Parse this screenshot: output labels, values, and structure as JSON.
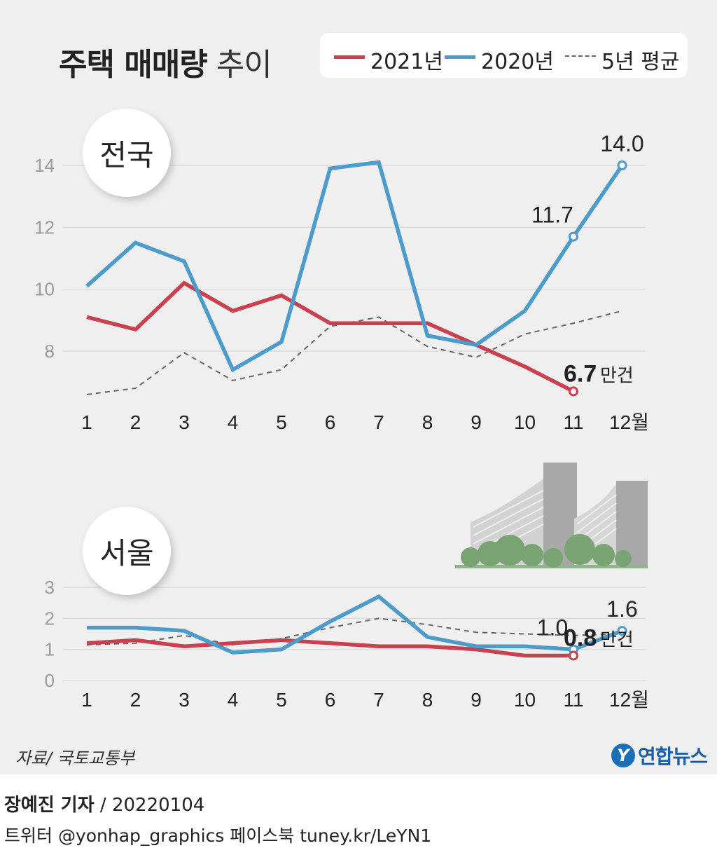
{
  "title": {
    "bold": "주택 매매량",
    "light": "추이"
  },
  "legend": [
    {
      "label": "2021년",
      "color": "#c9404f",
      "style": "solid"
    },
    {
      "label": "2020년",
      "color": "#4b9bcb",
      "style": "solid"
    },
    {
      "label": "5년 평균",
      "color": "#666666",
      "style": "dashed"
    }
  ],
  "colors": {
    "y2021": "#c9404f",
    "y2020": "#4b9bcb",
    "avg": "#666666",
    "grid": "#dcdcdc"
  },
  "chart_data": [
    {
      "type": "line",
      "title": "전국",
      "unit": "만건",
      "categories": [
        "1",
        "2",
        "3",
        "4",
        "5",
        "6",
        "7",
        "8",
        "9",
        "10",
        "11",
        "12월"
      ],
      "ylim": [
        6,
        14.5
      ],
      "yticks": [
        8,
        10,
        12,
        14
      ],
      "grid": true,
      "series": [
        {
          "name": "2021년",
          "values": [
            9.1,
            8.7,
            10.2,
            9.3,
            9.8,
            8.9,
            8.9,
            8.9,
            8.2,
            7.5,
            6.7,
            null
          ]
        },
        {
          "name": "2020년",
          "values": [
            10.1,
            11.5,
            10.9,
            7.4,
            8.3,
            13.9,
            14.1,
            8.5,
            8.2,
            9.3,
            11.7,
            14.0
          ]
        },
        {
          "name": "5년 평균",
          "values": [
            6.6,
            6.8,
            7.95,
            7.05,
            7.4,
            8.8,
            9.1,
            8.15,
            7.8,
            8.55,
            8.9,
            9.3
          ]
        }
      ],
      "labels": [
        {
          "series": "2020년",
          "index": 10,
          "text": "11.7"
        },
        {
          "series": "2020년",
          "index": 11,
          "text": "14.0"
        },
        {
          "series": "2021년",
          "index": 10,
          "text": "6.7",
          "suffix": "만건"
        }
      ]
    },
    {
      "type": "line",
      "title": "서울",
      "unit": "만건",
      "categories": [
        "1",
        "2",
        "3",
        "4",
        "5",
        "6",
        "7",
        "8",
        "9",
        "10",
        "11",
        "12월"
      ],
      "ylim": [
        0,
        3
      ],
      "yticks": [
        0,
        1,
        2,
        3
      ],
      "grid": true,
      "series": [
        {
          "name": "2021년",
          "values": [
            1.2,
            1.3,
            1.1,
            1.2,
            1.3,
            1.2,
            1.1,
            1.1,
            1.0,
            0.8,
            0.8,
            null
          ]
        },
        {
          "name": "2020년",
          "values": [
            1.7,
            1.7,
            1.6,
            0.9,
            1.0,
            1.9,
            2.7,
            1.4,
            1.1,
            1.1,
            1.0,
            1.6
          ]
        },
        {
          "name": "5년 평균",
          "values": [
            1.15,
            1.2,
            1.45,
            1.15,
            1.35,
            1.7,
            2.0,
            1.8,
            1.55,
            1.5,
            1.45,
            1.5
          ]
        }
      ],
      "labels": [
        {
          "series": "2020년",
          "index": 10,
          "text": "1.0"
        },
        {
          "series": "2020년",
          "index": 11,
          "text": "1.6"
        },
        {
          "series": "2021년",
          "index": 10,
          "text": "0.8",
          "suffix": "만건"
        }
      ]
    }
  ],
  "source": "자료/ 국토교통부",
  "logo": {
    "mark": "Y",
    "text": "연합뉴스"
  },
  "credit": {
    "name": "장예진 기자",
    "date": "/ 20220104"
  },
  "social": "트위터 @yonhap_graphics  페이스북 tuney.kr/LeYN1"
}
